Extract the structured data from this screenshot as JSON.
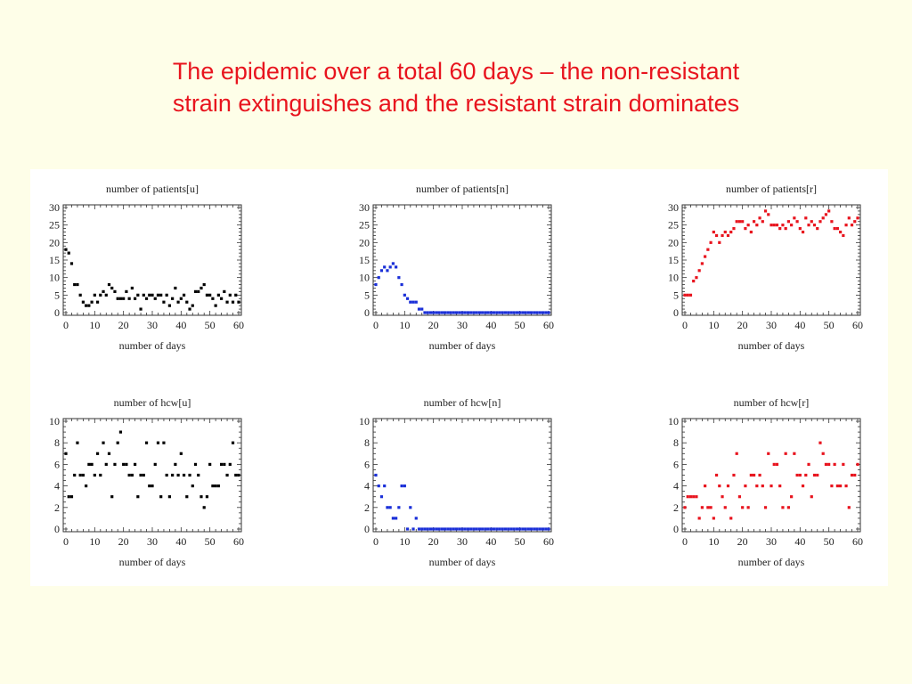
{
  "slide": {
    "title_line1": "The epidemic over a total 60 days – the non-resistant",
    "title_line2": "strain extinguishes and the resistant strain dominates",
    "title_color": "#e8141e",
    "background": "#fefee8"
  },
  "chart_data": [
    {
      "type": "scatter",
      "title": "number of patients[u]",
      "xlabel": "number of days",
      "ylabel": "",
      "xlim": [
        0,
        60
      ],
      "ylim": [
        0,
        30
      ],
      "xticks": [
        0,
        10,
        20,
        30,
        40,
        50,
        60
      ],
      "yticks": [
        0,
        5,
        10,
        15,
        20,
        25,
        30
      ],
      "color": "#000000",
      "x": [
        0,
        1,
        2,
        3,
        4,
        5,
        6,
        7,
        8,
        9,
        10,
        11,
        12,
        13,
        14,
        15,
        16,
        17,
        18,
        19,
        20,
        21,
        22,
        23,
        24,
        25,
        26,
        27,
        28,
        29,
        30,
        31,
        32,
        33,
        34,
        35,
        36,
        37,
        38,
        39,
        40,
        41,
        42,
        43,
        44,
        45,
        46,
        47,
        48,
        49,
        50,
        51,
        52,
        53,
        54,
        55,
        56,
        57,
        58,
        59,
        60
      ],
      "y": [
        18,
        17,
        14,
        8,
        8,
        5,
        3,
        2,
        2,
        3,
        5,
        3,
        5,
        6,
        5,
        8,
        7,
        6,
        4,
        4,
        4,
        6,
        4,
        7,
        4,
        5,
        1,
        5,
        4,
        5,
        5,
        4,
        5,
        5,
        3,
        5,
        2,
        4,
        7,
        3,
        4,
        5,
        3,
        1,
        2,
        6,
        6,
        7,
        8,
        5,
        5,
        4,
        2,
        5,
        4,
        6,
        3,
        5,
        3,
        5,
        3
      ]
    },
    {
      "type": "scatter",
      "title": "number of patients[n]",
      "xlabel": "number of days",
      "ylabel": "",
      "xlim": [
        0,
        60
      ],
      "ylim": [
        0,
        30
      ],
      "xticks": [
        0,
        10,
        20,
        30,
        40,
        50,
        60
      ],
      "yticks": [
        0,
        5,
        10,
        15,
        20,
        25,
        30
      ],
      "color": "#1a2fd8",
      "x": [
        0,
        1,
        2,
        3,
        4,
        5,
        6,
        7,
        8,
        9,
        10,
        11,
        12,
        13,
        14,
        15,
        16,
        17,
        18,
        19,
        20,
        21,
        22,
        23,
        24,
        25,
        26,
        27,
        28,
        29,
        30,
        31,
        32,
        33,
        34,
        35,
        36,
        37,
        38,
        39,
        40,
        41,
        42,
        43,
        44,
        45,
        46,
        47,
        48,
        49,
        50,
        51,
        52,
        53,
        54,
        55,
        56,
        57,
        58,
        59,
        60
      ],
      "y": [
        8,
        10,
        12,
        13,
        12,
        13,
        14,
        13,
        10,
        8,
        5,
        4,
        3,
        3,
        3,
        1,
        1,
        0,
        0,
        0,
        0,
        0,
        0,
        0,
        0,
        0,
        0,
        0,
        0,
        0,
        0,
        0,
        0,
        0,
        0,
        0,
        0,
        0,
        0,
        0,
        0,
        0,
        0,
        0,
        0,
        0,
        0,
        0,
        0,
        0,
        0,
        0,
        0,
        0,
        0,
        0,
        0,
        0,
        0,
        0,
        0
      ]
    },
    {
      "type": "scatter",
      "title": "number of patients[r]",
      "xlabel": "number of days",
      "ylabel": "",
      "xlim": [
        0,
        60
      ],
      "ylim": [
        0,
        30
      ],
      "xticks": [
        0,
        10,
        20,
        30,
        40,
        50,
        60
      ],
      "yticks": [
        0,
        5,
        10,
        15,
        20,
        25,
        30
      ],
      "color": "#e8141e",
      "x": [
        0,
        1,
        2,
        3,
        4,
        5,
        6,
        7,
        8,
        9,
        10,
        11,
        12,
        13,
        14,
        15,
        16,
        17,
        18,
        19,
        20,
        21,
        22,
        23,
        24,
        25,
        26,
        27,
        28,
        29,
        30,
        31,
        32,
        33,
        34,
        35,
        36,
        37,
        38,
        39,
        40,
        41,
        42,
        43,
        44,
        45,
        46,
        47,
        48,
        49,
        50,
        51,
        52,
        53,
        54,
        55,
        56,
        57,
        58,
        59,
        60
      ],
      "y": [
        5,
        5,
        5,
        9,
        10,
        12,
        14,
        16,
        18,
        20,
        23,
        22,
        20,
        22,
        23,
        22,
        23,
        24,
        26,
        26,
        26,
        24,
        25,
        23,
        26,
        25,
        27,
        26,
        29,
        28,
        25,
        25,
        25,
        24,
        25,
        24,
        26,
        25,
        27,
        26,
        24,
        23,
        27,
        25,
        26,
        25,
        24,
        26,
        27,
        28,
        29,
        26,
        24,
        24,
        23,
        22,
        25,
        27,
        25,
        26,
        27
      ]
    },
    {
      "type": "scatter",
      "title": "number of hcw[u]",
      "xlabel": "number of days",
      "ylabel": "",
      "xlim": [
        0,
        60
      ],
      "ylim": [
        0,
        10
      ],
      "xticks": [
        0,
        10,
        20,
        30,
        40,
        50,
        60
      ],
      "yticks": [
        0,
        2,
        4,
        6,
        8,
        10
      ],
      "color": "#000000",
      "x": [
        0,
        1,
        2,
        3,
        4,
        5,
        6,
        7,
        8,
        9,
        10,
        11,
        12,
        13,
        14,
        15,
        16,
        17,
        18,
        19,
        20,
        21,
        22,
        23,
        24,
        25,
        26,
        27,
        28,
        29,
        30,
        31,
        32,
        33,
        34,
        35,
        36,
        37,
        38,
        39,
        40,
        41,
        42,
        43,
        44,
        45,
        46,
        47,
        48,
        49,
        50,
        51,
        52,
        53,
        54,
        55,
        56,
        57,
        58,
        59,
        60
      ],
      "y": [
        7,
        3,
        3,
        5,
        8,
        5,
        5,
        4,
        6,
        6,
        5,
        7,
        5,
        8,
        6,
        7,
        3,
        6,
        8,
        9,
        6,
        6,
        5,
        5,
        6,
        3,
        5,
        5,
        8,
        4,
        4,
        6,
        8,
        3,
        8,
        5,
        3,
        5,
        6,
        5,
        7,
        5,
        3,
        5,
        4,
        6,
        5,
        3,
        2,
        3,
        6,
        4,
        4,
        4,
        6,
        6,
        5,
        6,
        8,
        5,
        5
      ]
    },
    {
      "type": "scatter",
      "title": "number of hcw[n]",
      "xlabel": "number of days",
      "ylabel": "",
      "xlim": [
        0,
        60
      ],
      "ylim": [
        0,
        10
      ],
      "xticks": [
        0,
        10,
        20,
        30,
        40,
        50,
        60
      ],
      "yticks": [
        0,
        2,
        4,
        6,
        8,
        10
      ],
      "color": "#1a2fd8",
      "x": [
        0,
        1,
        2,
        3,
        4,
        5,
        6,
        7,
        8,
        9,
        10,
        11,
        12,
        13,
        14,
        15,
        16,
        17,
        18,
        19,
        20,
        21,
        22,
        23,
        24,
        25,
        26,
        27,
        28,
        29,
        30,
        31,
        32,
        33,
        34,
        35,
        36,
        37,
        38,
        39,
        40,
        41,
        42,
        43,
        44,
        45,
        46,
        47,
        48,
        49,
        50,
        51,
        52,
        53,
        54,
        55,
        56,
        57,
        58,
        59,
        60
      ],
      "y": [
        5,
        4,
        3,
        4,
        2,
        2,
        1,
        1,
        2,
        4,
        4,
        0,
        2,
        0,
        1,
        0,
        0,
        0,
        0,
        0,
        0,
        0,
        0,
        0,
        0,
        0,
        0,
        0,
        0,
        0,
        0,
        0,
        0,
        0,
        0,
        0,
        0,
        0,
        0,
        0,
        0,
        0,
        0,
        0,
        0,
        0,
        0,
        0,
        0,
        0,
        0,
        0,
        0,
        0,
        0,
        0,
        0,
        0,
        0,
        0,
        0
      ]
    },
    {
      "type": "scatter",
      "title": "number of hcw[r]",
      "xlabel": "number of days",
      "ylabel": "",
      "xlim": [
        0,
        60
      ],
      "ylim": [
        0,
        10
      ],
      "xticks": [
        0,
        10,
        20,
        30,
        40,
        50,
        60
      ],
      "yticks": [
        0,
        2,
        4,
        6,
        8,
        10
      ],
      "color": "#e8141e",
      "x": [
        0,
        1,
        2,
        3,
        4,
        5,
        6,
        7,
        8,
        9,
        10,
        11,
        12,
        13,
        14,
        15,
        16,
        17,
        18,
        19,
        20,
        21,
        22,
        23,
        24,
        25,
        26,
        27,
        28,
        29,
        30,
        31,
        32,
        33,
        34,
        35,
        36,
        37,
        38,
        39,
        40,
        41,
        42,
        43,
        44,
        45,
        46,
        47,
        48,
        49,
        50,
        51,
        52,
        53,
        54,
        55,
        56,
        57,
        58,
        59,
        60
      ],
      "y": [
        2,
        3,
        3,
        3,
        3,
        1,
        2,
        4,
        2,
        2,
        1,
        5,
        4,
        3,
        2,
        4,
        1,
        5,
        7,
        3,
        2,
        4,
        2,
        5,
        5,
        4,
        5,
        4,
        2,
        7,
        4,
        6,
        6,
        4,
        2,
        7,
        2,
        3,
        7,
        5,
        5,
        4,
        5,
        6,
        3,
        5,
        5,
        8,
        7,
        6,
        6,
        4,
        6,
        4,
        4,
        6,
        4,
        2,
        5,
        5,
        6
      ]
    }
  ]
}
